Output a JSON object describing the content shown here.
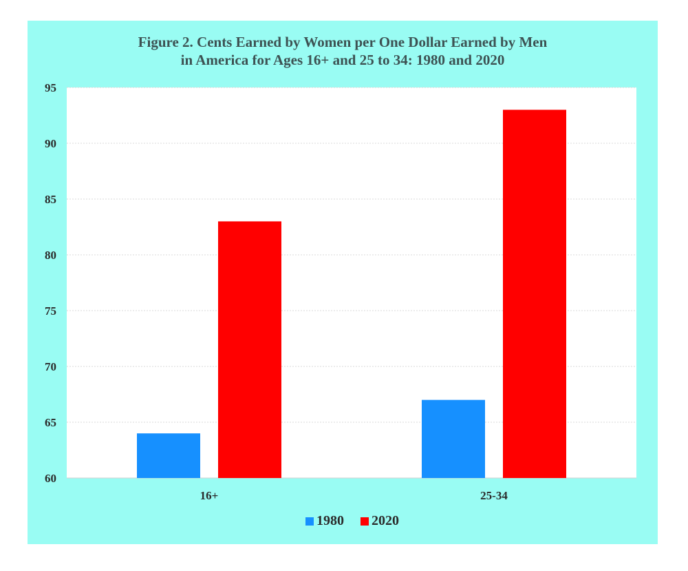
{
  "chart_data": {
    "type": "bar",
    "title_line1": "Figure 2. Cents Earned by Women per One Dollar Earned by Men",
    "title_line2": "in America for Ages 16+ and 25 to 34: 1980 and 2020",
    "categories": [
      "16+",
      "25-34"
    ],
    "series": [
      {
        "name": "1980",
        "values": [
          64,
          67
        ],
        "color": "#1690ff"
      },
      {
        "name": "2020",
        "values": [
          83,
          93
        ],
        "color": "#ff0000"
      }
    ],
    "ylim": [
      60,
      95
    ],
    "yticks": [
      60,
      65,
      70,
      75,
      80,
      85,
      90,
      95
    ],
    "grid": true,
    "legend_position": "bottom"
  },
  "colors": {
    "frame_background": "#99fcf3",
    "plot_background": "#ffffff",
    "title_color": "#3d5253"
  }
}
